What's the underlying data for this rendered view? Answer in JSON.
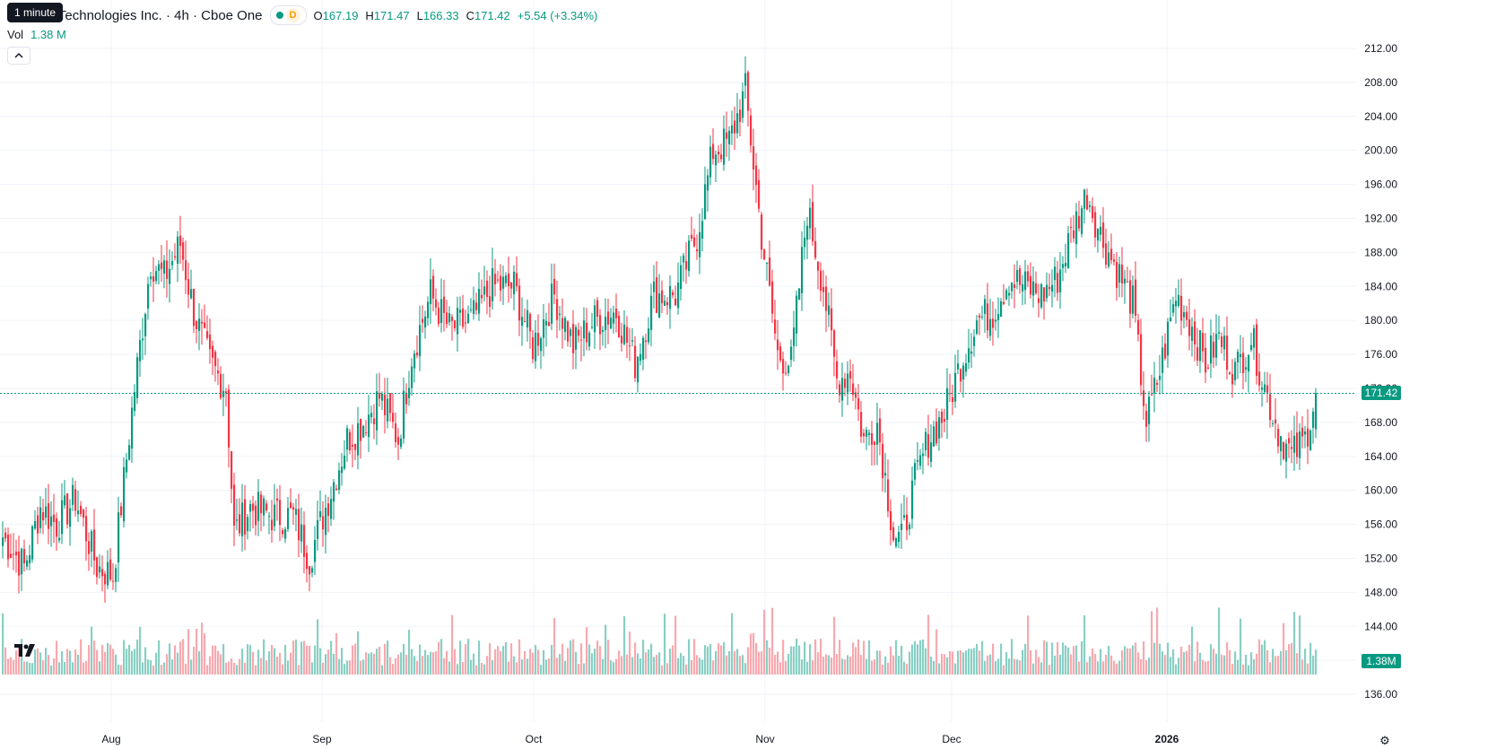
{
  "header": {
    "tooltip": "1 minute",
    "symbol_title": "r Technologies Inc. · 4h · Cboe One",
    "interval_badge": "D",
    "ohlc": {
      "o_label": "O",
      "o_value": "167.19",
      "h_label": "H",
      "h_value": "171.47",
      "l_label": "L",
      "l_value": "166.33",
      "c_label": "C",
      "c_value": "171.42",
      "change": "+5.54 (+3.34%)"
    },
    "volume_label": "Vol",
    "volume_value": "1.38 M",
    "collapse_icon": "chevron-up-icon"
  },
  "price_axis": {
    "ticks": [
      "212.00",
      "208.00",
      "204.00",
      "200.00",
      "196.00",
      "192.00",
      "188.00",
      "184.00",
      "180.00",
      "176.00",
      "172.00",
      "168.00",
      "164.00",
      "160.00",
      "156.00",
      "152.00",
      "148.00",
      "144.00",
      "140.00",
      "136.00"
    ],
    "last_price": "171.42",
    "last_volume": "1.38M"
  },
  "time_axis": {
    "labels": [
      "Aug",
      "Sep",
      "Oct",
      "Nov",
      "Dec",
      "2026"
    ]
  },
  "colors": {
    "up": "#089981",
    "down": "#f23645",
    "up_volume": "#89cfc4",
    "down_volume": "#f7a9af",
    "grid": "#f0f3fa"
  },
  "chart_data": {
    "type": "candlestick",
    "timeframe": "4h",
    "ylim": [
      134,
      214
    ],
    "last_close": 171.42,
    "anchors": [
      [
        0,
        154.5
      ],
      [
        8,
        151
      ],
      [
        14,
        158
      ],
      [
        20,
        156
      ],
      [
        27,
        159
      ],
      [
        35,
        151
      ],
      [
        41,
        150
      ],
      [
        49,
        172
      ],
      [
        55,
        187
      ],
      [
        60,
        185
      ],
      [
        66,
        189
      ],
      [
        71,
        181
      ],
      [
        77,
        175
      ],
      [
        83,
        172
      ],
      [
        86,
        155
      ],
      [
        92,
        158
      ],
      [
        100,
        157
      ],
      [
        108,
        157
      ],
      [
        114,
        152
      ],
      [
        120,
        158
      ],
      [
        128,
        166
      ],
      [
        134,
        168
      ],
      [
        140,
        171
      ],
      [
        147,
        166
      ],
      [
        152,
        176
      ],
      [
        159,
        183
      ],
      [
        166,
        179
      ],
      [
        174,
        180
      ],
      [
        182,
        184
      ],
      [
        190,
        184
      ],
      [
        197,
        177
      ],
      [
        205,
        183
      ],
      [
        212,
        177
      ],
      [
        220,
        180
      ],
      [
        228,
        181
      ],
      [
        235,
        175
      ],
      [
        242,
        183
      ],
      [
        250,
        183
      ],
      [
        258,
        190
      ],
      [
        264,
        200
      ],
      [
        270,
        201
      ],
      [
        276,
        207
      ],
      [
        282,
        190
      ],
      [
        288,
        176
      ],
      [
        293,
        175
      ],
      [
        299,
        193
      ],
      [
        305,
        184
      ],
      [
        310,
        173
      ],
      [
        315,
        174
      ],
      [
        320,
        166
      ],
      [
        325,
        168
      ],
      [
        331,
        155
      ],
      [
        334,
        154
      ],
      [
        339,
        161
      ],
      [
        344,
        166
      ],
      [
        350,
        169
      ],
      [
        356,
        175
      ],
      [
        362,
        180
      ],
      [
        368,
        181
      ],
      [
        374,
        185
      ],
      [
        380,
        184
      ],
      [
        386,
        183
      ],
      [
        392,
        185
      ],
      [
        398,
        191
      ],
      [
        403,
        195
      ],
      [
        408,
        190
      ],
      [
        414,
        186
      ],
      [
        420,
        182
      ],
      [
        425,
        168
      ],
      [
        430,
        174
      ],
      [
        436,
        183
      ],
      [
        441,
        180
      ],
      [
        447,
        175
      ],
      [
        452,
        178
      ],
      [
        458,
        174
      ],
      [
        464,
        178
      ],
      [
        470,
        171
      ],
      [
        474,
        167
      ],
      [
        479,
        164
      ],
      [
        484,
        166
      ],
      [
        488,
        171.4
      ]
    ]
  }
}
